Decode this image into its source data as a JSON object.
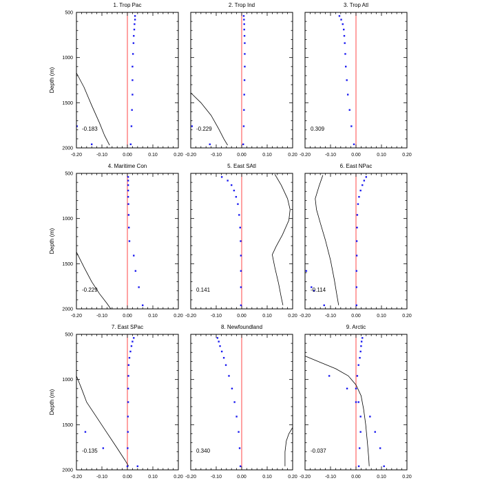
{
  "figure": {
    "ylabel": "Depth (m)",
    "xticks": [
      "-0.20",
      "-0.10",
      "0.00",
      "0.10",
      "0.20"
    ],
    "yticks": [
      "500",
      "1000",
      "1500",
      "2000"
    ]
  },
  "colors": {
    "zero_line": "#ff4444",
    "dots": "#1a1af0",
    "curve": "#000000",
    "frame": "#000000"
  },
  "chart_data": [
    {
      "type": "scatter",
      "title": "1. Trop Pac",
      "corr": "-0.183",
      "xlim": [
        -0.2,
        0.2
      ],
      "ylim": [
        500,
        2000
      ],
      "y_inverted": true,
      "dots": [
        [
          0.03,
          540
        ],
        [
          0.03,
          580
        ],
        [
          0.028,
          630
        ],
        [
          0.027,
          690
        ],
        [
          0.025,
          760
        ],
        [
          0.024,
          840
        ],
        [
          0.022,
          960
        ],
        [
          0.02,
          1100
        ],
        [
          0.02,
          1250
        ],
        [
          0.02,
          1410
        ],
        [
          0.018,
          1580
        ],
        [
          0.016,
          1760
        ],
        [
          0.013,
          1960
        ],
        [
          -0.198,
          1760
        ],
        [
          -0.14,
          1960
        ]
      ],
      "curve": [
        [
          -0.2,
          1170
        ],
        [
          -0.17,
          1330
        ],
        [
          -0.14,
          1530
        ],
        [
          -0.11,
          1720
        ],
        [
          -0.09,
          1860
        ],
        [
          -0.07,
          1970
        ]
      ]
    },
    {
      "type": "scatter",
      "title": "2. Trop Ind",
      "corr": "-0.229",
      "xlim": [
        -0.2,
        0.2
      ],
      "ylim": [
        500,
        2000
      ],
      "y_inverted": true,
      "dots": [
        [
          0.008,
          540
        ],
        [
          0.009,
          580
        ],
        [
          0.01,
          630
        ],
        [
          0.01,
          690
        ],
        [
          0.011,
          760
        ],
        [
          0.012,
          840
        ],
        [
          0.012,
          960
        ],
        [
          0.012,
          1100
        ],
        [
          0.011,
          1250
        ],
        [
          0.01,
          1410
        ],
        [
          0.009,
          1580
        ],
        [
          0.008,
          1760
        ],
        [
          0.006,
          1960
        ],
        [
          -0.195,
          1760
        ],
        [
          -0.125,
          1960
        ]
      ],
      "curve": [
        [
          -0.2,
          1390
        ],
        [
          -0.16,
          1500
        ],
        [
          -0.12,
          1640
        ],
        [
          -0.09,
          1790
        ],
        [
          -0.07,
          1900
        ],
        [
          -0.055,
          1970
        ]
      ]
    },
    {
      "type": "scatter",
      "title": "3. Trop Atl",
      "corr": "0.309",
      "xlim": [
        -0.2,
        0.2
      ],
      "ylim": [
        500,
        2000
      ],
      "y_inverted": true,
      "dots": [
        [
          -0.065,
          540
        ],
        [
          -0.058,
          580
        ],
        [
          -0.052,
          630
        ],
        [
          -0.048,
          690
        ],
        [
          -0.046,
          760
        ],
        [
          -0.044,
          840
        ],
        [
          -0.042,
          960
        ],
        [
          -0.04,
          1100
        ],
        [
          -0.036,
          1250
        ],
        [
          -0.032,
          1410
        ],
        [
          -0.025,
          1580
        ],
        [
          -0.018,
          1760
        ],
        [
          -0.008,
          1960
        ]
      ],
      "curve": []
    },
    {
      "type": "scatter",
      "title": "4. Maritime Con",
      "corr": "-0.229",
      "xlim": [
        -0.2,
        0.2
      ],
      "ylim": [
        500,
        2000
      ],
      "y_inverted": true,
      "dots": [
        [
          0.003,
          540
        ],
        [
          0.003,
          580
        ],
        [
          0.003,
          630
        ],
        [
          0.003,
          690
        ],
        [
          0.003,
          760
        ],
        [
          0.004,
          840
        ],
        [
          0.005,
          960
        ],
        [
          0.006,
          1100
        ],
        [
          0.008,
          1250
        ],
        [
          0.025,
          1410
        ],
        [
          0.032,
          1580
        ],
        [
          0.045,
          1760
        ],
        [
          0.06,
          1960
        ]
      ],
      "curve": [
        [
          -0.2,
          1370
        ],
        [
          -0.17,
          1540
        ],
        [
          -0.14,
          1700
        ],
        [
          -0.11,
          1830
        ],
        [
          -0.08,
          1940
        ],
        [
          -0.065,
          2000
        ]
      ]
    },
    {
      "type": "scatter",
      "title": "5. East SAtl",
      "corr": "0.141",
      "xlim": [
        -0.2,
        0.2
      ],
      "ylim": [
        500,
        2000
      ],
      "y_inverted": true,
      "dots": [
        [
          -0.078,
          540
        ],
        [
          -0.055,
          580
        ],
        [
          -0.04,
          630
        ],
        [
          -0.03,
          690
        ],
        [
          -0.022,
          760
        ],
        [
          -0.015,
          840
        ],
        [
          -0.01,
          960
        ],
        [
          -0.006,
          1100
        ],
        [
          -0.004,
          1250
        ],
        [
          -0.003,
          1410
        ],
        [
          -0.003,
          1580
        ],
        [
          -0.003,
          1760
        ],
        [
          -0.003,
          1960
        ]
      ],
      "curve": [
        [
          0.13,
          510
        ],
        [
          0.155,
          630
        ],
        [
          0.18,
          780
        ],
        [
          0.19,
          900
        ],
        [
          0.185,
          1020
        ],
        [
          0.16,
          1180
        ],
        [
          0.135,
          1310
        ],
        [
          0.12,
          1400
        ],
        [
          0.13,
          1540
        ],
        [
          0.145,
          1720
        ],
        [
          0.155,
          1870
        ],
        [
          0.162,
          1960
        ]
      ]
    },
    {
      "type": "scatter",
      "title": "6. East NPac",
      "corr": "-0.114",
      "xlim": [
        -0.2,
        0.2
      ],
      "ylim": [
        500,
        2000
      ],
      "y_inverted": true,
      "dots": [
        [
          0.04,
          540
        ],
        [
          0.032,
          580
        ],
        [
          0.025,
          630
        ],
        [
          0.018,
          690
        ],
        [
          0.012,
          760
        ],
        [
          0.008,
          840
        ],
        [
          0.005,
          960
        ],
        [
          0.004,
          1100
        ],
        [
          0.003,
          1250
        ],
        [
          0.003,
          1410
        ],
        [
          0.002,
          1580
        ],
        [
          0.002,
          1760
        ],
        [
          0.002,
          1960
        ],
        [
          -0.195,
          1580
        ],
        [
          -0.175,
          1760
        ],
        [
          -0.165,
          1800
        ],
        [
          -0.125,
          1960
        ]
      ],
      "curve": [
        [
          -0.13,
          520
        ],
        [
          -0.145,
          640
        ],
        [
          -0.16,
          780
        ],
        [
          -0.155,
          900
        ],
        [
          -0.14,
          1050
        ],
        [
          -0.12,
          1240
        ],
        [
          -0.1,
          1460
        ],
        [
          -0.085,
          1680
        ],
        [
          -0.075,
          1850
        ],
        [
          -0.068,
          1960
        ]
      ]
    },
    {
      "type": "scatter",
      "title": "7. East SPac",
      "corr": "-0.135",
      "xlim": [
        -0.2,
        0.2
      ],
      "ylim": [
        500,
        2000
      ],
      "y_inverted": true,
      "dots": [
        [
          0.025,
          540
        ],
        [
          0.02,
          580
        ],
        [
          0.016,
          630
        ],
        [
          0.012,
          690
        ],
        [
          0.008,
          760
        ],
        [
          0.005,
          840
        ],
        [
          0.004,
          960
        ],
        [
          0.003,
          1100
        ],
        [
          0.003,
          1250
        ],
        [
          0.002,
          1410
        ],
        [
          0.002,
          1580
        ],
        [
          0.001,
          1760
        ],
        [
          0.0,
          1960
        ],
        [
          -0.165,
          1580
        ],
        [
          -0.095,
          1760
        ],
        [
          0.04,
          1960
        ]
      ],
      "curve": [
        [
          -0.2,
          960
        ],
        [
          -0.18,
          1100
        ],
        [
          -0.16,
          1250
        ],
        [
          -0.12,
          1420
        ],
        [
          -0.08,
          1590
        ],
        [
          -0.04,
          1760
        ],
        [
          -0.01,
          1890
        ],
        [
          0.005,
          1960
        ]
      ]
    },
    {
      "type": "scatter",
      "title": "8. Newfoundland",
      "corr": "0.340",
      "xlim": [
        -0.2,
        0.2
      ],
      "ylim": [
        500,
        2000
      ],
      "y_inverted": true,
      "dots": [
        [
          -0.095,
          540
        ],
        [
          -0.09,
          580
        ],
        [
          -0.085,
          630
        ],
        [
          -0.078,
          690
        ],
        [
          -0.07,
          760
        ],
        [
          -0.062,
          840
        ],
        [
          -0.05,
          960
        ],
        [
          -0.038,
          1100
        ],
        [
          -0.028,
          1250
        ],
        [
          -0.02,
          1410
        ],
        [
          -0.012,
          1580
        ],
        [
          -0.008,
          1760
        ],
        [
          -0.005,
          1960
        ]
      ],
      "curve": [
        [
          0.2,
          1530
        ],
        [
          0.185,
          1600
        ],
        [
          0.175,
          1680
        ],
        [
          0.17,
          1800
        ],
        [
          0.17,
          1960
        ]
      ]
    },
    {
      "type": "scatter",
      "title": "9. Arctic",
      "corr": "-0.037",
      "xlim": [
        -0.2,
        0.2
      ],
      "ylim": [
        500,
        2000
      ],
      "y_inverted": true,
      "dots": [
        [
          0.025,
          540
        ],
        [
          0.022,
          580
        ],
        [
          0.02,
          630
        ],
        [
          0.018,
          690
        ],
        [
          0.015,
          760
        ],
        [
          0.01,
          840
        ],
        [
          0.005,
          960
        ],
        [
          0.0,
          1100
        ],
        [
          0.01,
          1250
        ],
        [
          0.018,
          1410
        ],
        [
          0.018,
          1580
        ],
        [
          0.014,
          1760
        ],
        [
          0.011,
          1960
        ],
        [
          -0.105,
          960
        ],
        [
          -0.035,
          1100
        ],
        [
          0.0,
          1250
        ],
        [
          0.055,
          1410
        ],
        [
          0.075,
          1580
        ],
        [
          0.095,
          1760
        ],
        [
          0.11,
          1960
        ]
      ],
      "curve": [
        [
          -0.2,
          740
        ],
        [
          -0.14,
          810
        ],
        [
          -0.08,
          880
        ],
        [
          -0.03,
          960
        ],
        [
          0.0,
          1060
        ],
        [
          0.02,
          1180
        ],
        [
          0.03,
          1330
        ],
        [
          0.038,
          1500
        ],
        [
          0.045,
          1700
        ],
        [
          0.05,
          1870
        ],
        [
          0.052,
          1960
        ]
      ]
    }
  ]
}
